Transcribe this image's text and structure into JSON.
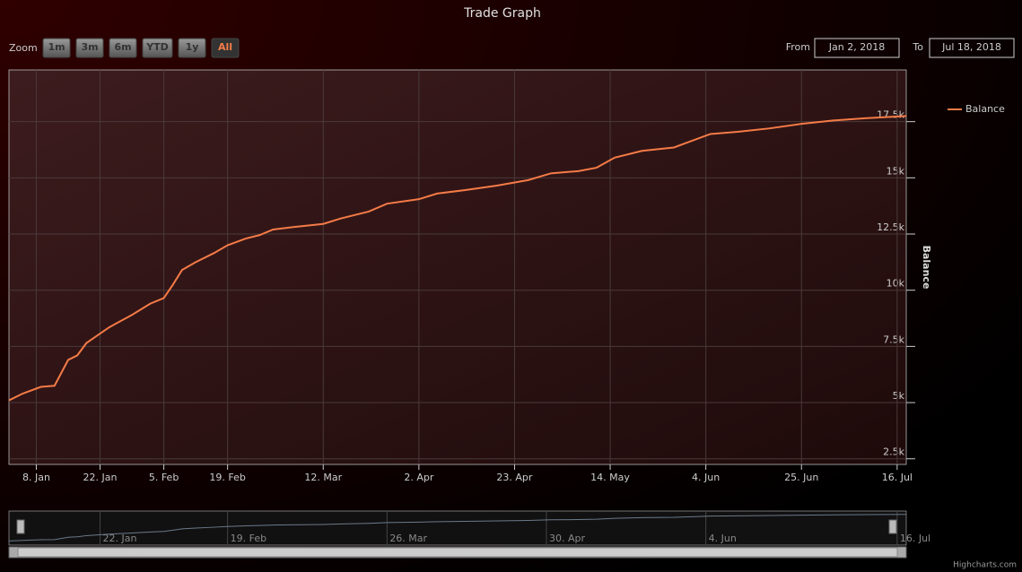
{
  "chart_data": {
    "type": "line",
    "title": "Trade Graph",
    "range_selector": {
      "zoom_label": "Zoom",
      "buttons": [
        "1m",
        "3m",
        "6m",
        "YTD",
        "1y",
        "All"
      ],
      "selected": 5,
      "from_label": "From",
      "from": "Jan 2, 2018",
      "to_label": "To",
      "to": "Jul 18, 2018"
    },
    "y_axis_label": "Balance",
    "credits": "Highcharts.com",
    "legend": "right",
    "grid": true,
    "x": [
      "2018-01-02",
      "2018-01-05",
      "2018-01-09",
      "2018-01-12",
      "2018-01-15",
      "2018-01-17",
      "2018-01-19",
      "2018-01-24",
      "2018-01-29",
      "2018-02-02",
      "2018-02-05",
      "2018-02-07",
      "2018-02-09",
      "2018-02-12",
      "2018-02-16",
      "2018-02-19",
      "2018-02-23",
      "2018-02-26",
      "2018-03-01",
      "2018-03-05",
      "2018-03-12",
      "2018-03-16",
      "2018-03-22",
      "2018-03-26",
      "2018-04-02",
      "2018-04-06",
      "2018-04-12",
      "2018-04-19",
      "2018-04-26",
      "2018-05-01",
      "2018-05-07",
      "2018-05-11",
      "2018-05-15",
      "2018-05-21",
      "2018-05-28",
      "2018-06-01",
      "2018-06-05",
      "2018-06-11",
      "2018-06-18",
      "2018-06-25",
      "2018-07-02",
      "2018-07-09",
      "2018-07-18"
    ],
    "series": [
      {
        "name": "Balance",
        "color": "#f47b47",
        "values": [
          5100,
          5400,
          5700,
          5750,
          6900,
          7100,
          7650,
          8350,
          8900,
          9400,
          9650,
          10250,
          10900,
          11250,
          11650,
          12000,
          12300,
          12450,
          12700,
          12800,
          12950,
          13200,
          13500,
          13850,
          14050,
          14300,
          14450,
          14650,
          14900,
          15200,
          15300,
          15450,
          15900,
          16200,
          16350,
          16650,
          16950,
          17050,
          17200,
          17400,
          17550,
          17650,
          17750
        ]
      }
    ],
    "xlim": [
      "2018-01-02",
      "2018-07-18"
    ],
    "xticks": [
      {
        "value": "2018-01-08",
        "label": "8. Jan"
      },
      {
        "value": "2018-01-22",
        "label": "22. Jan"
      },
      {
        "value": "2018-02-05",
        "label": "5. Feb"
      },
      {
        "value": "2018-02-19",
        "label": "19. Feb"
      },
      {
        "value": "2018-03-12",
        "label": "12. Mar"
      },
      {
        "value": "2018-04-02",
        "label": "2. Apr"
      },
      {
        "value": "2018-04-23",
        "label": "23. Apr"
      },
      {
        "value": "2018-05-14",
        "label": "14. May"
      },
      {
        "value": "2018-06-04",
        "label": "4. Jun"
      },
      {
        "value": "2018-06-25",
        "label": "25. Jun"
      },
      {
        "value": "2018-07-16",
        "label": "16. Jul"
      }
    ],
    "ylim": [
      2250,
      19800
    ],
    "yticks": [
      {
        "value": 2500,
        "label": "2.5k"
      },
      {
        "value": 5000,
        "label": "5k"
      },
      {
        "value": 7500,
        "label": "7.5k"
      },
      {
        "value": 10000,
        "label": "10k"
      },
      {
        "value": 12500,
        "label": "12.5k"
      },
      {
        "value": 15000,
        "label": "15k"
      },
      {
        "value": 17500,
        "label": "17.5k"
      }
    ],
    "navigator": {
      "ylim": [
        4000,
        18500
      ],
      "xticks": [
        {
          "value": "2018-01-22",
          "label": "22. Jan"
        },
        {
          "value": "2018-02-19",
          "label": "19. Feb"
        },
        {
          "value": "2018-03-26",
          "label": "26. Mar"
        },
        {
          "value": "2018-04-30",
          "label": "30. Apr"
        },
        {
          "value": "2018-06-04",
          "label": "4. Jun"
        },
        {
          "value": "2018-07-16",
          "label": "16. Jul"
        }
      ]
    }
  }
}
